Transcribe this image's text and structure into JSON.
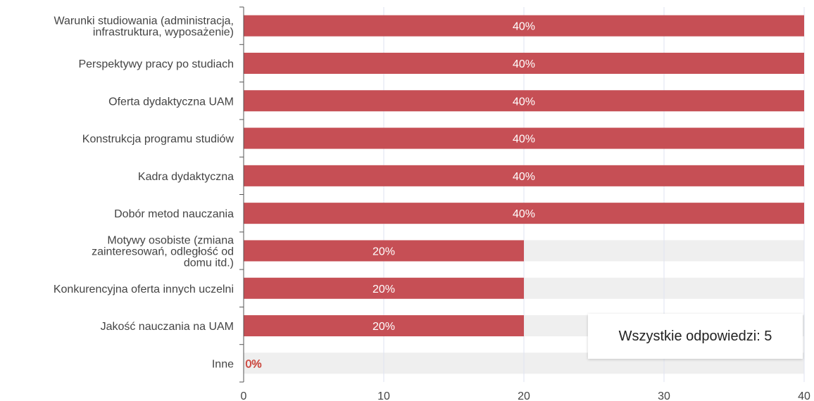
{
  "chart_data": {
    "type": "bar",
    "orientation": "horizontal",
    "categories": [
      "Warunki studiowania (administracja, infrastruktura, wyposażenie)",
      "Perspektywy pracy po studiach",
      "Oferta dydaktyczna UAM",
      "Konstrukcja programu studiów",
      "Kadra dydaktyczna",
      "Dobór metod nauczania",
      "Motywy osobiste (zmiana zainteresowań, odległość od domu itd.)",
      "Konkurencyjna oferta innych uczelni",
      "Jakość nauczania na UAM",
      "Inne"
    ],
    "category_lines": [
      [
        "Warunki studiowania (administracja,",
        "infrastruktura, wyposażenie)"
      ],
      [
        "Perspektywy pracy po studiach"
      ],
      [
        "Oferta dydaktyczna UAM"
      ],
      [
        "Konstrukcja programu studiów"
      ],
      [
        "Kadra dydaktyczna"
      ],
      [
        "Dobór metod nauczania"
      ],
      [
        "Motywy osobiste (zmiana",
        "zainteresowań, odległość od",
        "domu itd.)"
      ],
      [
        "Konkurencyjna oferta innych uczelni"
      ],
      [
        "Jakość nauczania na UAM"
      ],
      [
        "Inne"
      ]
    ],
    "values": [
      40,
      40,
      40,
      40,
      40,
      40,
      20,
      20,
      20,
      0
    ],
    "data_labels": [
      "40%",
      "40%",
      "40%",
      "40%",
      "40%",
      "40%",
      "20%",
      "20%",
      "20%",
      "0%"
    ],
    "xlim": [
      0,
      40
    ],
    "xticks": [
      0,
      10,
      20,
      30,
      40
    ],
    "xtick_labels": [
      "0",
      "10",
      "20",
      "30",
      "40"
    ],
    "grid": true,
    "colors": {
      "bar": "#c64f55",
      "track": "#efefef",
      "grid": "#dfe3f0",
      "axis": "#555555",
      "zero_label": "#e06666"
    }
  },
  "summary": {
    "total_text": "Wszystkie odpowiedzi: 5"
  }
}
